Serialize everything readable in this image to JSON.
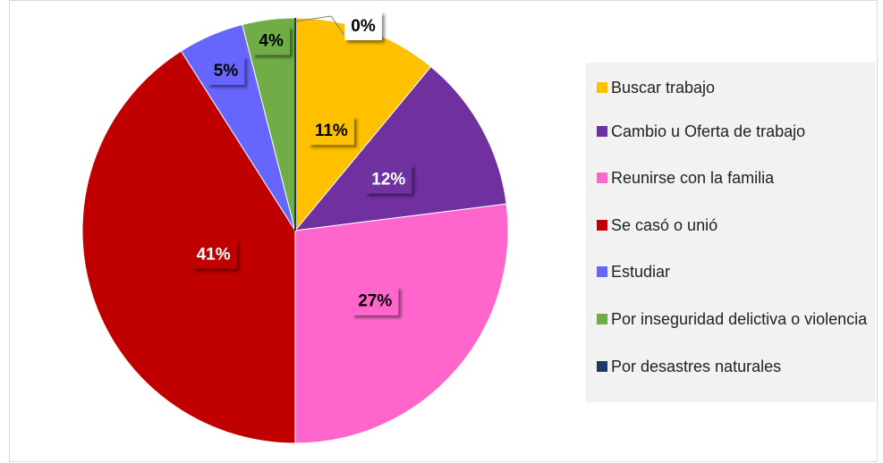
{
  "chart_data": {
    "type": "pie",
    "categories": [
      "Buscar trabajo",
      "Cambio u Oferta de trabajo",
      "Reunirse con la familia",
      "Se casó o unió",
      "Estudiar",
      "Por inseguridad delictiva o violencia",
      "Por desastres naturales"
    ],
    "values": [
      11,
      12,
      27,
      41,
      5,
      4,
      0
    ],
    "value_labels": [
      "11%",
      "12%",
      "27%",
      "41%",
      "5%",
      "4%",
      "0%"
    ],
    "colors": [
      "#FFC000",
      "#7030A0",
      "#FF66CC",
      "#C00000",
      "#6666FF",
      "#70AD47",
      "#1F3864"
    ],
    "legend": "right"
  }
}
